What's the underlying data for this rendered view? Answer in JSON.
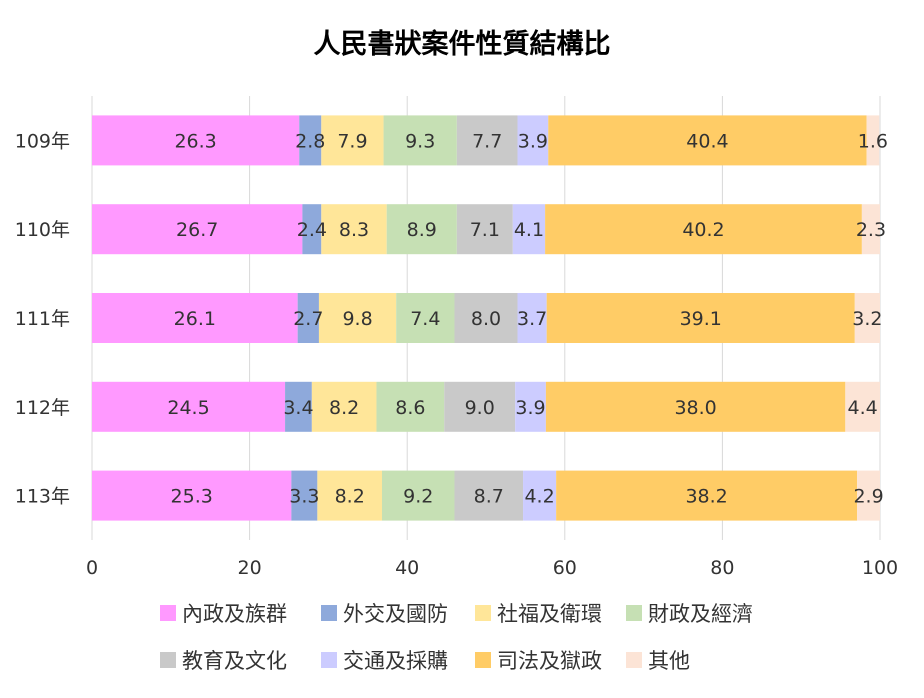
{
  "chart_data": {
    "type": "bar",
    "orientation": "horizontal",
    "stacked": true,
    "title": "人民書狀案件性質結構比",
    "xlabel": "",
    "ylabel": "",
    "xlim": [
      0,
      100
    ],
    "x_ticks": [
      "0",
      "20",
      "40",
      "60",
      "80",
      "100"
    ],
    "grid": true,
    "legend_position": "bottom",
    "categories": [
      "109年",
      "110年",
      "111年",
      "112年",
      "113年"
    ],
    "series": [
      {
        "name": "內政及族群",
        "color": "#ff99ff",
        "values": [
          26.3,
          26.7,
          26.1,
          24.5,
          25.3
        ]
      },
      {
        "name": "外交及國防",
        "color": "#8ea9db",
        "values": [
          2.8,
          2.4,
          2.7,
          3.4,
          3.3
        ]
      },
      {
        "name": "社福及衛環",
        "color": "#ffe699",
        "values": [
          7.9,
          8.3,
          9.8,
          8.2,
          8.2
        ]
      },
      {
        "name": "財政及經濟",
        "color": "#c6e0b4",
        "values": [
          9.3,
          8.9,
          7.4,
          8.6,
          9.2
        ]
      },
      {
        "name": "教育及文化",
        "color": "#c9c9c9",
        "values": [
          7.7,
          7.1,
          8.0,
          9.0,
          8.7
        ]
      },
      {
        "name": "交通及採購",
        "color": "#ccccff",
        "values": [
          3.9,
          4.1,
          3.7,
          3.9,
          4.2
        ]
      },
      {
        "name": "司法及獄政",
        "color": "#ffcc66",
        "values": [
          40.4,
          40.2,
          39.1,
          38.0,
          38.2
        ]
      },
      {
        "name": "其他",
        "color": "#fce4d6",
        "values": [
          1.6,
          2.3,
          3.2,
          4.4,
          2.9
        ]
      }
    ]
  }
}
